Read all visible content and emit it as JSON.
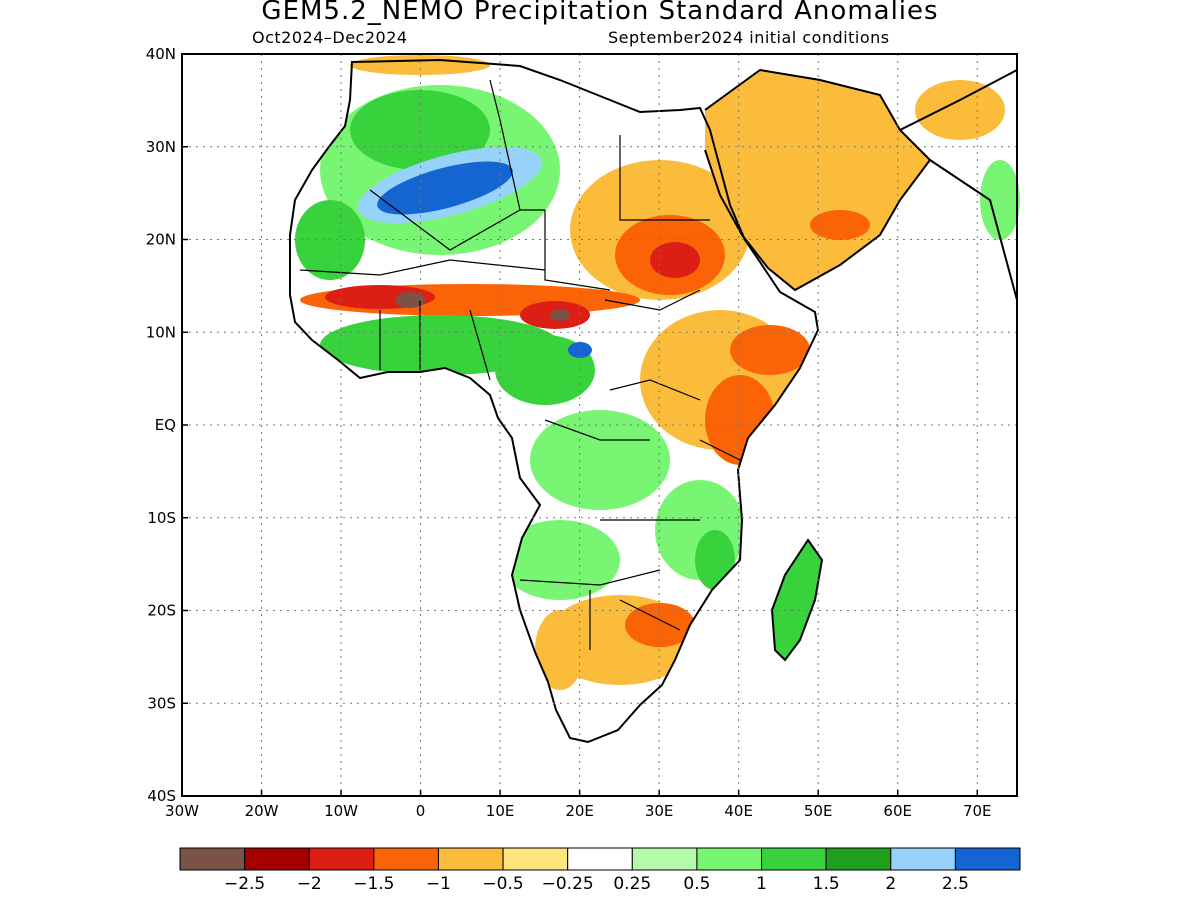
{
  "title": "GEM5.2_NEMO Precipitation Standard Anomalies",
  "subtitle_left": "Oct2024–Dec2024",
  "subtitle_right": "September2024 initial conditions",
  "map": {
    "lon_range": [
      -30,
      75
    ],
    "lat_range": [
      -40,
      40
    ],
    "lon_ticks": [
      {
        "value": -30,
        "label": "30W"
      },
      {
        "value": -20,
        "label": "20W"
      },
      {
        "value": -10,
        "label": "10W"
      },
      {
        "value": 0,
        "label": "0"
      },
      {
        "value": 10,
        "label": "10E"
      },
      {
        "value": 20,
        "label": "20E"
      },
      {
        "value": 30,
        "label": "30E"
      },
      {
        "value": 40,
        "label": "40E"
      },
      {
        "value": 50,
        "label": "50E"
      },
      {
        "value": 60,
        "label": "60E"
      },
      {
        "value": 70,
        "label": "70E"
      }
    ],
    "lat_ticks": [
      {
        "value": 40,
        "label": "40N"
      },
      {
        "value": 30,
        "label": "30N"
      },
      {
        "value": 20,
        "label": "20N"
      },
      {
        "value": 10,
        "label": "10N"
      },
      {
        "value": 0,
        "label": "EQ"
      },
      {
        "value": -10,
        "label": "10S"
      },
      {
        "value": -20,
        "label": "20S"
      },
      {
        "value": -30,
        "label": "30S"
      },
      {
        "value": -40,
        "label": "40S"
      }
    ],
    "grid": true
  },
  "colorbar": {
    "colors": [
      "#7b5248",
      "#a50000",
      "#dc1e14",
      "#fa6407",
      "#fbbc3c",
      "#fde47c",
      "#ffffff",
      "#b4faaa",
      "#78f573",
      "#37d23c",
      "#1ea01e",
      "#96d2fa",
      "#1464d2"
    ],
    "labels": [
      "−2.5",
      "−2",
      "−1.5",
      "−1",
      "−0.5",
      "−0.25",
      "0.25",
      "0.5",
      "1",
      "1.5",
      "2",
      "2.5"
    ]
  },
  "regions": [
    {
      "name": "northwest-africa-positive",
      "category": "0.5 to 1",
      "color": "#78f573"
    },
    {
      "name": "sahara-strong-positive",
      "category": "2.5+",
      "color": "#1464d2"
    },
    {
      "name": "sahel-negative-belt",
      "category": "-2 to -1",
      "color": "#dc1e14"
    },
    {
      "name": "lake-chad-deficit",
      "category": "below -2.5",
      "color": "#7b5248"
    },
    {
      "name": "sudan-negative",
      "category": "-1.5 to -0.5",
      "color": "#fa6407"
    },
    {
      "name": "arabia-negative",
      "category": "-1 to -0.25",
      "color": "#fbbc3c"
    },
    {
      "name": "horn-of-africa-negative",
      "category": "-1.5 to -1",
      "color": "#fa6407"
    },
    {
      "name": "guinea-coast-positive",
      "category": "1 to 1.5",
      "color": "#37d23c"
    },
    {
      "name": "southern-africa-negative",
      "category": "-1.5 to -0.5",
      "color": "#fa6407"
    },
    {
      "name": "madagascar-positive",
      "category": "1 to 1.5",
      "color": "#37d23c"
    }
  ]
}
